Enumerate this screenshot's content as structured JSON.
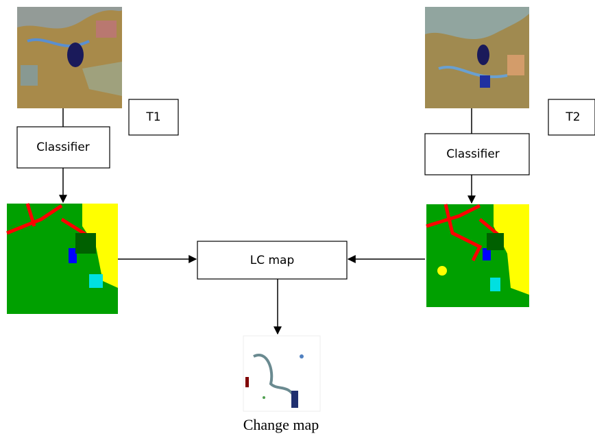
{
  "nodes": [
    {
      "label": "T1"
    },
    {
      "label": "Classifier"
    },
    {
      "label": "T2"
    },
    {
      "label": "Classifier"
    },
    {
      "label": "LC map"
    },
    {
      "label": "Change map"
    }
  ]
}
